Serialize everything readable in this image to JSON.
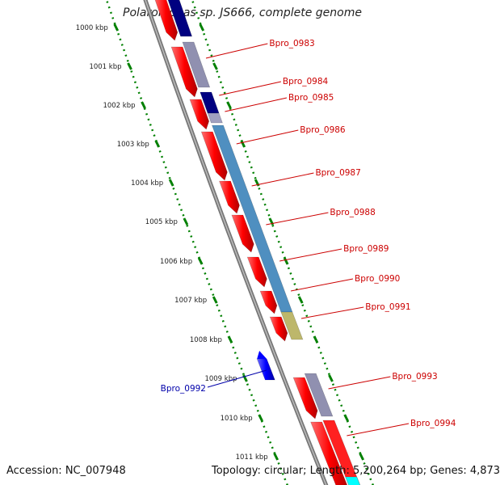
{
  "title": "Polaromonas sp. JS666, complete genome",
  "accession": "Accession: NC_007948",
  "summary": "Topology: circular; Length: 5,200,264 bp; Genes: 4,873",
  "scale_labels": [
    "1000 kbp",
    "1001 kbp",
    "1002 kbp",
    "1003 kbp",
    "1004 kbp",
    "1005 kbp",
    "1006 kbp",
    "1007 kbp",
    "1008 kbp",
    "1009 kbp",
    "1010 kbp",
    "1011 kbp"
  ],
  "gene_labels_forward": [
    "Bpro_0983",
    "Bpro_0984",
    "Bpro_0985",
    "Bpro_0986",
    "Bpro_0987",
    "Bpro_0988",
    "Bpro_0989",
    "Bpro_0990",
    "Bpro_0991",
    "Bpro_0993",
    "Bpro_0994"
  ],
  "gene_labels_reverse": [
    "Bpro_0992"
  ],
  "colors": {
    "backbone": "#888888",
    "forward_gene": "#ff0000",
    "reverse_gene": "#0000ff",
    "label_forward": "#cc0000",
    "label_reverse": "#0000aa",
    "scale_dots": "#008000",
    "cog_dark": "#000080",
    "cog_blue": "#4f8fc0",
    "cog_khaki": "#bdb76b"
  }
}
